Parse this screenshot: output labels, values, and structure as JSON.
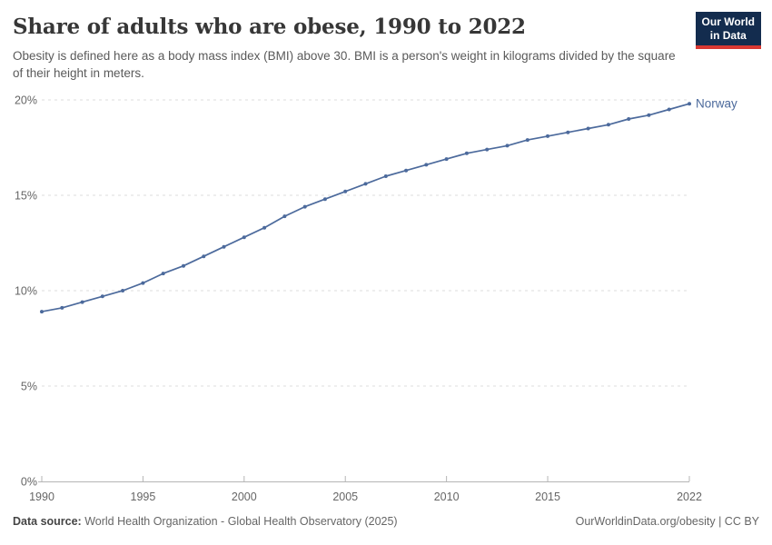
{
  "header": {
    "title": "Share of adults who are obese, 1990 to 2022",
    "subtitle": "Obesity is defined here as a body mass index (BMI) above 30. BMI is a person's weight in kilograms divided by the square of their height in meters."
  },
  "logo": {
    "line1": "Our World",
    "line2": "in Data",
    "bg_color": "#132c4e",
    "stripe_color": "#d93832"
  },
  "footer": {
    "source_label": "Data source:",
    "source_text": "World Health Organization - Global Health Observatory (2025)",
    "credit": "OurWorldinData.org/obesity | CC BY"
  },
  "chart_data": {
    "type": "line",
    "title": "Share of adults who are obese, 1990 to 2022",
    "xlabel": "",
    "ylabel": "",
    "xlim": [
      1990,
      2022
    ],
    "ylim": [
      0,
      20
    ],
    "xticks": [
      1990,
      1995,
      2000,
      2005,
      2010,
      2015,
      2022
    ],
    "yticks": [
      0,
      5,
      10,
      15,
      20
    ],
    "ytick_suffix": "%",
    "grid": true,
    "legend_position": "end-of-line",
    "line_color": "#4C6A9C",
    "grid_color": "#dedede",
    "axis_color": "#b5b5b5",
    "x": [
      1990,
      1991,
      1992,
      1993,
      1994,
      1995,
      1996,
      1997,
      1998,
      1999,
      2000,
      2001,
      2002,
      2003,
      2004,
      2005,
      2006,
      2007,
      2008,
      2009,
      2010,
      2011,
      2012,
      2013,
      2014,
      2015,
      2016,
      2017,
      2018,
      2019,
      2020,
      2021,
      2022
    ],
    "series": [
      {
        "name": "Norway",
        "values": [
          8.9,
          9.1,
          9.4,
          9.7,
          10.0,
          10.4,
          10.9,
          11.3,
          11.8,
          12.3,
          12.8,
          13.3,
          13.9,
          14.4,
          14.8,
          15.2,
          15.6,
          16.0,
          16.3,
          16.6,
          16.9,
          17.2,
          17.4,
          17.6,
          17.9,
          18.1,
          18.3,
          18.5,
          18.7,
          19.0,
          19.2,
          19.5,
          19.8
        ]
      }
    ]
  }
}
